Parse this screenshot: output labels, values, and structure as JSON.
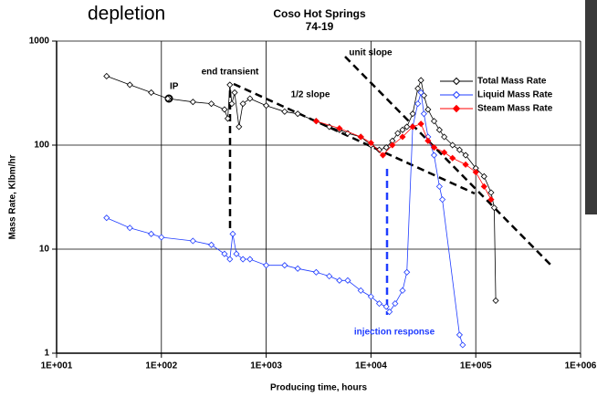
{
  "header_text": "depletion",
  "chart_data": {
    "type": "line",
    "title": "Coso Hot Springs",
    "subtitle": "74-19",
    "xlabel": "Producing time, hours",
    "ylabel": "Mass Rate, Klbm/hr",
    "xscale": "log",
    "yscale": "log",
    "grid": true,
    "legend": "upper right",
    "xlim": [
      10,
      1000000
    ],
    "xticks": [
      {
        "value": 10,
        "label": "1E+001"
      },
      {
        "value": 100,
        "label": "1E+002"
      },
      {
        "value": 1000,
        "label": "1E+003"
      },
      {
        "value": 10000,
        "label": "1E+004"
      },
      {
        "value": 100000,
        "label": "1E+005"
      },
      {
        "value": 1000000,
        "label": "1E+006"
      }
    ],
    "ylim": [
      1,
      1000
    ],
    "yticks": [
      1,
      10,
      100,
      1000
    ],
    "annotations": [
      "IP",
      "end transient",
      "1/2 slope",
      "unit slope",
      "injection response"
    ],
    "series": [
      {
        "name": "Total Mass Rate",
        "color": "#000000",
        "marker": "open-diamond",
        "x": [
          30,
          50,
          80,
          115,
          200,
          300,
          400,
          430,
          450,
          470,
          500,
          550,
          600,
          700,
          1000,
          1500,
          2000,
          3000,
          4000,
          5000,
          6000,
          8000,
          10000,
          12000,
          14000,
          16000,
          18000,
          20000,
          22000,
          25000,
          28000,
          30000,
          32000,
          35000,
          40000,
          45000,
          50000,
          60000,
          70000,
          80000,
          100000,
          120000,
          140000,
          150000,
          155000
        ],
        "values": [
          460,
          380,
          320,
          280,
          260,
          250,
          220,
          180,
          380,
          250,
          320,
          150,
          250,
          280,
          240,
          210,
          200,
          170,
          150,
          140,
          130,
          120,
          100,
          90,
          95,
          110,
          130,
          140,
          150,
          200,
          350,
          420,
          300,
          220,
          170,
          140,
          120,
          100,
          90,
          80,
          60,
          50,
          35,
          25,
          3.2
        ]
      },
      {
        "name": "Liquid Mass Rate",
        "color": "#1f3cff",
        "marker": "open-diamond",
        "x": [
          30,
          50,
          80,
          100,
          200,
          300,
          400,
          450,
          480,
          520,
          600,
          700,
          1000,
          1500,
          2000,
          3000,
          4000,
          5000,
          6000,
          8000,
          10000,
          12000,
          14000,
          15000,
          17000,
          20000,
          22000,
          25000,
          28000,
          30000,
          32000,
          35000,
          40000,
          45000,
          48000,
          70000,
          75000
        ],
        "values": [
          20,
          16,
          14,
          13,
          12,
          11,
          9,
          8,
          14,
          9,
          8,
          8,
          7,
          7,
          6.5,
          6,
          5.5,
          5,
          5,
          4,
          3.5,
          3,
          2.8,
          2.5,
          3,
          4,
          6,
          150,
          250,
          320,
          200,
          120,
          80,
          40,
          30,
          1.5,
          1.2
        ]
      },
      {
        "name": "Steam Mass Rate",
        "color": "#ff0000",
        "marker": "filled-diamond",
        "x": [
          3000,
          5000,
          8000,
          10000,
          13000,
          16000,
          20000,
          25000,
          30000,
          35000,
          40000,
          50000,
          60000,
          80000,
          100000,
          120000,
          140000
        ],
        "values": [
          170,
          145,
          120,
          105,
          80,
          100,
          120,
          150,
          160,
          110,
          95,
          85,
          75,
          65,
          55,
          40,
          30
        ]
      }
    ]
  }
}
